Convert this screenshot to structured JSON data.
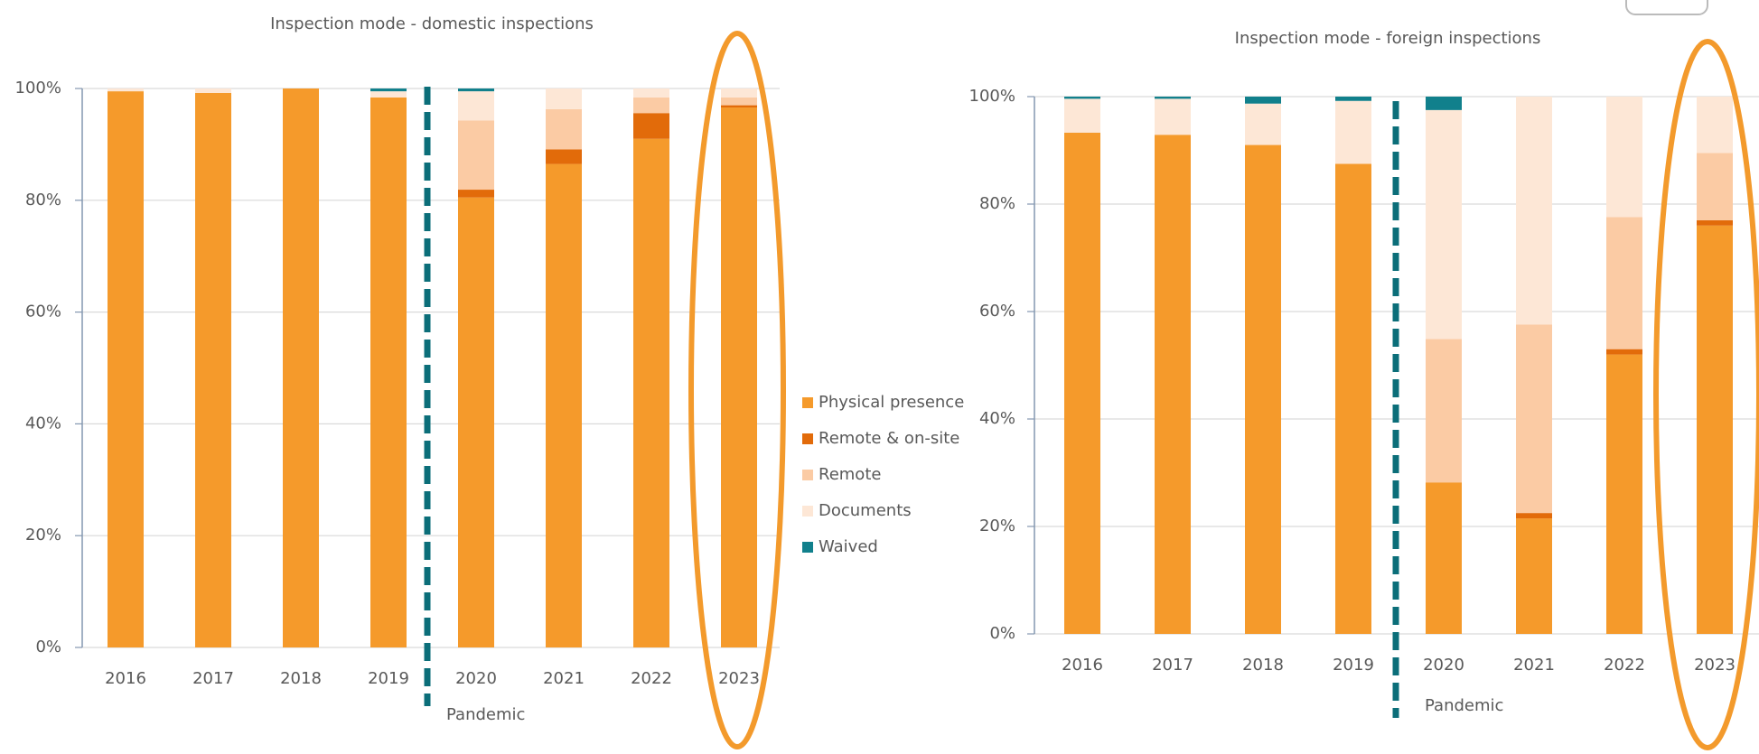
{
  "chart_data": [
    {
      "type": "bar",
      "stacked": true,
      "title": "Inspection mode - domestic inspections",
      "categories": [
        "2016",
        "2017",
        "2018",
        "2019",
        "2020",
        "2021",
        "2022",
        "2023"
      ],
      "series": [
        {
          "name": "Physical presence",
          "color": "#f59a2b",
          "values": [
            99.5,
            99.2,
            100,
            98.4,
            80.5,
            86.5,
            91,
            96.6
          ]
        },
        {
          "name": "Remote & on-site",
          "color": "#e26b0a",
          "values": [
            0,
            0,
            0,
            0,
            1.4,
            2.6,
            4.6,
            0.4
          ]
        },
        {
          "name": "Remote",
          "color": "#fbcba4",
          "values": [
            0,
            0,
            0,
            0,
            12.4,
            7.2,
            2.8,
            1.4
          ]
        },
        {
          "name": "Documents",
          "color": "#fde7d6",
          "values": [
            0.5,
            0.8,
            0,
            1.1,
            5.2,
            3.7,
            1.6,
            1.6
          ]
        },
        {
          "name": "Waived",
          "color": "#11808c",
          "values": [
            0,
            0,
            0,
            0.5,
            0.5,
            0,
            0,
            0
          ]
        }
      ],
      "ylim": [
        0,
        100
      ],
      "yticks": [
        {
          "value": 0,
          "label": "0%"
        },
        {
          "value": 20,
          "label": "20%"
        },
        {
          "value": 40,
          "label": "40%"
        },
        {
          "value": 60,
          "label": "60%"
        },
        {
          "value": 80,
          "label": "80%"
        },
        {
          "value": 100,
          "label": "100%"
        }
      ],
      "grid": true,
      "legend": "right",
      "annotation": "Pandemic"
    },
    {
      "type": "bar",
      "stacked": true,
      "title": "Inspection mode - foreign inspections",
      "categories": [
        "2016",
        "2017",
        "2018",
        "2019",
        "2020",
        "2021",
        "2022",
        "2023"
      ],
      "series": [
        {
          "color": "#f59a2b",
          "values": [
            93.3,
            92.9,
            91,
            87.5,
            28.2,
            21.5,
            52,
            76
          ]
        },
        {
          "color": "#e26b0a",
          "values": [
            0,
            0,
            0,
            0,
            0,
            1,
            1,
            1
          ]
        },
        {
          "color": "#fbcba4",
          "values": [
            0,
            0,
            0,
            0,
            26.7,
            35.1,
            24.6,
            12.5
          ]
        },
        {
          "color": "#fde7d6",
          "values": [
            6.3,
            6.7,
            7.7,
            11.7,
            42.6,
            42.4,
            22.4,
            10.5
          ]
        },
        {
          "color": "#11808c",
          "values": [
            0.4,
            0.4,
            1.3,
            0.8,
            2.5,
            0,
            0,
            0
          ]
        }
      ],
      "ylim": [
        0,
        100
      ],
      "yticks": [
        {
          "value": 0,
          "label": "0%"
        },
        {
          "value": 20,
          "label": "20%"
        },
        {
          "value": 40,
          "label": "40%"
        },
        {
          "value": 60,
          "label": "60%"
        },
        {
          "value": 80,
          "label": "80%"
        },
        {
          "value": 100,
          "label": "100%"
        }
      ],
      "grid": true,
      "annotation": "Pandemic"
    }
  ]
}
